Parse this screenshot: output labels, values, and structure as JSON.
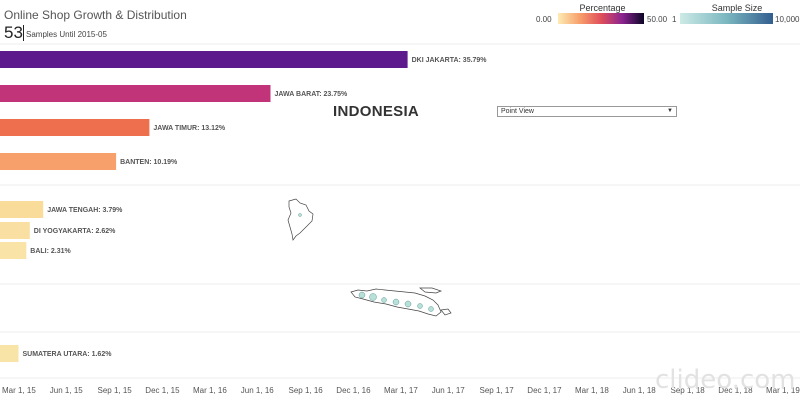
{
  "header": {
    "title": "Online Shop Growth & Distribution",
    "count": "53",
    "subtitle": "Samples Until 2015-05"
  },
  "legends": {
    "percentage": {
      "title": "Percentage",
      "min": "0.00",
      "max": "50.00"
    },
    "sample_size": {
      "title": "Sample Size",
      "min": "1",
      "max": "10,000"
    }
  },
  "map": {
    "title": "INDONESIA",
    "view_select": "Point View"
  },
  "colors": {
    "pct_low": "#f9e3a1",
    "pct_mid_low": "#f8a06c",
    "pct_mid": "#ee6f4e",
    "pct_mid_high": "#c2347a",
    "pct_high": "#6a1692",
    "size_low": "#c8e8e4",
    "size_high": "#3b6f98"
  },
  "chart_data": {
    "type": "bar",
    "orientation": "horizontal",
    "xlim": [
      0,
      50
    ],
    "categories": [
      "DKI JAKARTA",
      "JAWA BARAT",
      "JAWA TIMUR",
      "BANTEN",
      "JAWA TENGAH",
      "DI YOGYAKARTA",
      "BALI",
      "SUMATERA UTARA"
    ],
    "values": [
      35.79,
      23.75,
      13.12,
      10.19,
      3.79,
      2.62,
      2.31,
      1.62
    ],
    "labels": [
      "DKI JAKARTA: 35.79%",
      "JAWA BARAT: 23.75%",
      "JAWA TIMUR: 13.12%",
      "BANTEN: 10.19%",
      "JAWA TENGAH: 3.79%",
      "DI YOGYAKARTA: 2.62%",
      "BALI: 2.31%",
      "SUMATERA UTARA: 1.62%"
    ],
    "colors": [
      "#5c1a8c",
      "#c2347a",
      "#ee6f4e",
      "#f8a06c",
      "#f9dc99",
      "#f9e0a2",
      "#f9e3a6",
      "#f8e4a6"
    ],
    "time_axis_labels": [
      "Mar 1, 15",
      "Jun 1, 15",
      "Sep 1, 15",
      "Dec 1, 15",
      "Mar 1, 16",
      "Jun 1, 16",
      "Sep 1, 16",
      "Dec 1, 16",
      "Mar 1, 17",
      "Jun 1, 17",
      "Sep 1, 17",
      "Dec 1, 17",
      "Mar 1, 18",
      "Jun 1, 18",
      "Sep 1, 18",
      "Dec 1, 18",
      "Mar 1, 19"
    ]
  },
  "watermark": "clideo.com"
}
